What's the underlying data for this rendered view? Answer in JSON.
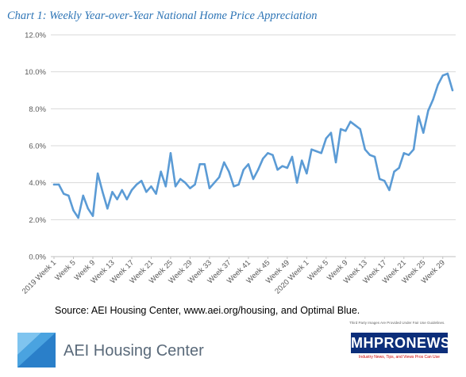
{
  "chart_data": {
    "type": "line",
    "title": "Chart 1: Weekly Year-over-Year National Home Price Appreciation",
    "xlabel": "",
    "ylabel": "",
    "ylim": [
      0,
      12
    ],
    "y_ticks": [
      "0.0%",
      "2.0%",
      "4.0%",
      "6.0%",
      "8.0%",
      "10.0%",
      "12.0%"
    ],
    "x_tick_labels": [
      "2019 Week 1",
      "Week 5",
      "Week 9",
      "Week 13",
      "Week 17",
      "Week 21",
      "Week 25",
      "Week 29",
      "Week 33",
      "Week 37",
      "Week 41",
      "Week 45",
      "Week 49",
      "2020 Week 1",
      "Week 5",
      "Week 9",
      "Week 13",
      "Week 17",
      "Week 21",
      "Week 25",
      "Week 29"
    ],
    "grid": true,
    "line_color": "#5b9bd5",
    "series": [
      {
        "values": [
          3.9,
          3.9,
          3.4,
          3.3,
          2.5,
          2.1,
          3.3,
          2.6,
          2.2,
          4.5,
          3.5,
          2.6,
          3.5,
          3.1,
          3.6,
          3.1,
          3.6,
          3.9,
          4.1,
          3.5,
          3.8,
          3.4,
          4.6,
          3.8,
          5.6,
          3.8,
          4.2,
          4.0,
          3.7,
          3.9,
          5.0,
          5.0,
          3.7,
          4.0,
          4.3,
          5.1,
          4.6,
          3.8,
          3.9,
          4.7,
          5.0,
          4.2,
          4.7,
          5.3,
          5.6,
          5.5,
          4.7,
          4.9,
          4.8,
          5.4,
          4.0,
          5.2,
          4.5,
          5.8,
          5.7,
          5.6,
          6.4,
          6.7,
          5.1,
          6.9,
          6.8,
          7.3,
          7.1,
          6.9,
          5.8,
          5.5,
          5.4,
          4.2,
          4.1,
          3.6,
          4.6,
          4.8,
          5.6,
          5.5,
          5.8,
          7.6,
          6.7,
          7.9,
          8.5,
          9.3,
          9.8,
          9.9,
          9.0
        ]
      }
    ],
    "source": "Source: AEI Housing Center, www.aei.org/housing, and Optimal Blue."
  },
  "branding": {
    "aei_logo_text": "AEI Housing Center",
    "aei_logo_color": "#5a6a7a",
    "notice_text": "Third Party Images Are Provided Under Fair Use Guidelines.",
    "mh_logo_text": "MHPRONEWS.com",
    "mh_tagline": "Industry News, Tips, and Views Pros Can Use",
    "mh_logo_color": "#0c2e7a"
  }
}
